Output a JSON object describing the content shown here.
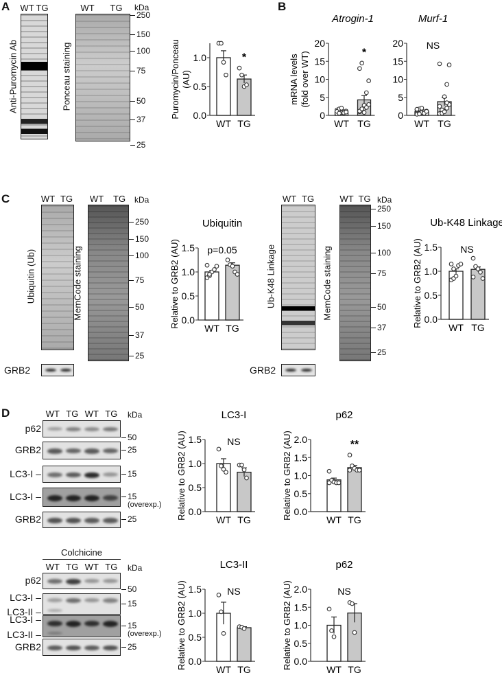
{
  "panels": {
    "A": {
      "label": "A",
      "lanes": [
        "WT",
        "TG"
      ],
      "blot1_label": "Anti-Puromycin Ab",
      "blot2_label": "Ponceau staining",
      "kda": "kDa",
      "markers": [
        "250",
        "150",
        "100",
        "75",
        "50",
        "37",
        "25"
      ]
    },
    "B": {
      "label": "B"
    },
    "C": {
      "label": "C",
      "lanes": [
        "WT",
        "TG"
      ],
      "blot1_label": "Ubiquitin (Ub)",
      "blot2_label": "MemCode staining",
      "blot3_label": "Ub-K48 Linkage",
      "blot4_label": "MemCode staining",
      "loading": "GRB2",
      "kda": "kDa",
      "markers": [
        "250",
        "150",
        "100",
        "75",
        "50",
        "37",
        "25"
      ]
    },
    "D": {
      "label": "D",
      "lanes": [
        "WT",
        "TG",
        "WT",
        "TG"
      ],
      "kda": "kDa",
      "colchicine": "Colchicine",
      "top_rows": [
        {
          "label": "p62",
          "marker": "50"
        },
        {
          "label": "GRB2",
          "marker": "25"
        },
        {
          "label": "LC3-I",
          "marker": "15"
        },
        {
          "label": "LC3-I",
          "marker": "15",
          "note": "(overexp.)"
        },
        {
          "label": "GRB2",
          "marker": "25"
        }
      ],
      "bottom_rows": [
        {
          "label": "p62",
          "marker": "50"
        },
        {
          "label": "LC3-I",
          "label2": "LC3-II",
          "marker": "15"
        },
        {
          "label": "LC3-I",
          "label2": "LC3-II",
          "marker": "15",
          "note": "(overexp.)"
        },
        {
          "label": "GRB2",
          "marker": "25"
        }
      ]
    }
  },
  "chart_data": [
    {
      "type": "bar",
      "panel": "A",
      "title": "",
      "ylabel": "Puromycin/Ponceau\n(AU)",
      "categories": [
        "WT",
        "TG"
      ],
      "values": [
        1.0,
        0.63
      ],
      "sem": [
        0.12,
        0.07
      ],
      "points": [
        [
          1.25,
          1.25,
          0.92,
          0.7
        ],
        [
          0.82,
          0.7,
          0.5,
          0.53
        ]
      ],
      "ylim": [
        0,
        1.25
      ],
      "yticks": [
        "0.0",
        "0.5",
        "1.0"
      ],
      "annotation": "*",
      "annotation_over": "TG",
      "colors": [
        "#ffffff",
        "#c8c8c8"
      ]
    },
    {
      "type": "bar",
      "panel": "B",
      "title": "Atrogin-1",
      "title_italic": true,
      "ylabel": "mRNA levels\n(fold over WT)",
      "categories": [
        "WT",
        "TG"
      ],
      "values": [
        1.0,
        4.3
      ],
      "sem": [
        0.15,
        1.2
      ],
      "points": [
        [
          0.5,
          0.6,
          0.8,
          1.0,
          1.2,
          1.5,
          1.8,
          2.0,
          0.7,
          0.9,
          1.1,
          0.6
        ],
        [
          1.0,
          1.5,
          2.0,
          2.5,
          3.0,
          1.2,
          1.8,
          2.8,
          6.3,
          9.6,
          13.0,
          14.5,
          0.8,
          2.2
        ]
      ],
      "ylim": [
        0,
        20
      ],
      "yticks": [
        "0",
        "5",
        "10",
        "15",
        "20"
      ],
      "annotation": "*",
      "annotation_over": "TG",
      "colors": [
        "#ffffff",
        "#c8c8c8"
      ]
    },
    {
      "type": "bar",
      "panel": "B",
      "title": "Murf-1",
      "title_italic": true,
      "ylabel": "",
      "categories": [
        "WT",
        "TG"
      ],
      "values": [
        1.0,
        3.8
      ],
      "sem": [
        0.2,
        1.1
      ],
      "points": [
        [
          0.3,
          0.5,
          0.8,
          1.0,
          1.2,
          1.5,
          1.8,
          2.0,
          0.6,
          1.1,
          1.7,
          0.4
        ],
        [
          0.5,
          0.8,
          1.2,
          2.0,
          3.0,
          2.5,
          1.5,
          5.2,
          8.6,
          14.0,
          14.3,
          0.6,
          1.0,
          3.5
        ]
      ],
      "ylim": [
        0,
        20
      ],
      "yticks": [
        "0",
        "5",
        "10",
        "15",
        "20"
      ],
      "annotation": "NS",
      "colors": [
        "#ffffff",
        "#c8c8c8"
      ]
    },
    {
      "type": "bar",
      "panel": "C",
      "title": "Ubiquitin",
      "ylabel": "Relative to GRB2 (AU)",
      "categories": [
        "WT",
        "TG"
      ],
      "values": [
        1.0,
        1.14
      ],
      "sem": [
        0.03,
        0.05
      ],
      "points": [
        [
          0.88,
          0.92,
          1.0,
          1.05,
          1.12,
          1.14,
          0.95
        ],
        [
          1.25,
          1.15,
          1.12,
          1.0,
          0.95
        ]
      ],
      "ylim": [
        0,
        1.5
      ],
      "yticks": [
        "0.0",
        "0.5",
        "1.0",
        "1.5"
      ],
      "annotation": "p=0.05",
      "colors": [
        "#ffffff",
        "#c8c8c8"
      ]
    },
    {
      "type": "bar",
      "panel": "C",
      "title": "Ub-K48 Linkage",
      "ylabel": "Relative to GRB2 (AU)",
      "categories": [
        "WT",
        "TG"
      ],
      "values": [
        1.0,
        1.04
      ],
      "sem": [
        0.05,
        0.05
      ],
      "points": [
        [
          0.82,
          0.85,
          0.9,
          1.12,
          1.15,
          1.15,
          1.05
        ],
        [
          1.27,
          1.1,
          1.05,
          0.98,
          0.85,
          0.88
        ]
      ],
      "ylim": [
        0,
        1.5
      ],
      "yticks": [
        "0.0",
        "0.5",
        "1.0",
        "1.5"
      ],
      "annotation": "NS",
      "colors": [
        "#ffffff",
        "#c8c8c8"
      ]
    },
    {
      "type": "bar",
      "panel": "D",
      "title": "LC3-I",
      "ylabel": "Relative to GRB2 (AU)",
      "categories": [
        "WT",
        "TG"
      ],
      "values": [
        1.0,
        0.82
      ],
      "sem": [
        0.1,
        0.09
      ],
      "points": [
        [
          1.3,
          0.95,
          0.88,
          0.82
        ],
        [
          0.97,
          0.97,
          0.87,
          0.7
        ]
      ],
      "ylim": [
        0,
        1.5
      ],
      "yticks": [
        "0.0",
        "0.5",
        "1.0",
        "1.5"
      ],
      "annotation": "NS",
      "colors": [
        "#ffffff",
        "#c8c8c8"
      ]
    },
    {
      "type": "bar",
      "panel": "D",
      "title": "p62",
      "ylabel": "Relative to GRB2 (AU)",
      "categories": [
        "WT",
        "TG"
      ],
      "values": [
        0.88,
        1.22
      ],
      "sem": [
        0.05,
        0.06
      ],
      "points": [
        [
          1.12,
          0.87,
          0.82,
          0.8,
          0.8,
          0.8
        ],
        [
          1.57,
          1.27,
          1.2,
          1.15,
          1.15,
          1.15
        ]
      ],
      "ylim": [
        0,
        2.0
      ],
      "yticks": [
        "0.0",
        "0.5",
        "1.0",
        "1.5",
        "2.0"
      ],
      "annotation": "**",
      "colors": [
        "#ffffff",
        "#c8c8c8"
      ]
    },
    {
      "type": "bar",
      "panel": "D",
      "title": "LC3-II",
      "ylabel": "Relative to GRB2 (AU)",
      "categories": [
        "WT",
        "TG"
      ],
      "values": [
        1.0,
        0.7
      ],
      "sem": [
        0.23,
        0.02
      ],
      "points": [
        [
          1.38,
          1.03,
          0.58
        ],
        [
          0.72,
          0.71,
          0.68
        ]
      ],
      "ylim": [
        0,
        1.5
      ],
      "yticks": [
        "0.0",
        "0.5",
        "1.0",
        "1.5"
      ],
      "annotation": "NS",
      "colors": [
        "#ffffff",
        "#c8c8c8"
      ]
    },
    {
      "type": "bar",
      "panel": "D",
      "title": "p62",
      "ylabel": "Relative to GRB2 (AU)",
      "categories": [
        "WT",
        "TG"
      ],
      "values": [
        1.0,
        1.34
      ],
      "sem": [
        0.23,
        0.26
      ],
      "points": [
        [
          1.45,
          0.85,
          0.68
        ],
        [
          1.63,
          1.6,
          0.8
        ]
      ],
      "ylim": [
        0,
        2.0
      ],
      "yticks": [
        "0.0",
        "0.5",
        "1.0",
        "1.5",
        "2.0"
      ],
      "annotation": "NS",
      "colors": [
        "#ffffff",
        "#c8c8c8"
      ]
    }
  ]
}
